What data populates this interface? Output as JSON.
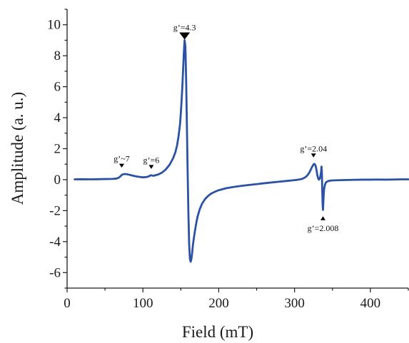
{
  "chart_data": {
    "type": "line",
    "title": "",
    "xlabel": "Field (mT)",
    "ylabel": "Amplitude (a. u.)",
    "xlim": [
      0,
      450
    ],
    "ylim": [
      -7,
      11
    ],
    "x_ticks": [
      0,
      100,
      200,
      300,
      400
    ],
    "y_ticks": [
      -6,
      -4,
      -2,
      0,
      2,
      4,
      6,
      8,
      10
    ],
    "grid": false,
    "line_color": "#2b52a3",
    "series": [
      {
        "x": [
          10,
          20,
          30,
          40,
          50,
          60,
          65,
          68,
          70,
          72,
          74,
          76,
          78,
          80,
          85,
          90,
          95,
          100,
          105,
          108,
          110,
          112,
          114,
          116,
          120,
          125,
          130,
          135,
          140,
          143,
          145,
          147,
          149,
          150,
          151,
          152,
          153,
          154,
          155,
          156,
          157,
          158,
          159,
          160,
          161,
          162,
          163,
          164,
          165,
          166,
          168,
          170,
          172,
          175,
          178,
          182,
          186,
          190,
          195,
          200,
          210,
          220,
          230,
          240,
          250,
          260,
          270,
          280,
          290,
          300,
          305,
          310,
          314,
          317,
          320,
          322,
          324,
          325,
          326,
          327,
          328,
          329,
          330,
          331,
          332,
          333,
          334,
          335,
          335.5,
          336,
          336.5,
          337,
          337.5,
          338,
          338.5,
          339,
          340,
          341,
          342,
          344,
          346,
          350,
          360,
          370,
          380,
          390,
          400,
          410,
          420,
          430,
          440,
          450
        ],
        "y": [
          0.02,
          0.03,
          0.02,
          0.03,
          0.04,
          0.05,
          0.07,
          0.12,
          0.2,
          0.3,
          0.35,
          0.36,
          0.36,
          0.34,
          0.28,
          0.22,
          0.18,
          0.15,
          0.17,
          0.22,
          0.28,
          0.27,
          0.25,
          0.28,
          0.33,
          0.45,
          0.65,
          0.95,
          1.4,
          1.8,
          2.2,
          2.8,
          3.6,
          4.3,
          5.1,
          6.0,
          7.1,
          8.2,
          9.0,
          8.6,
          6.5,
          3.5,
          0.5,
          -2.2,
          -4.2,
          -5.1,
          -5.3,
          -5.1,
          -4.7,
          -4.2,
          -3.5,
          -2.9,
          -2.4,
          -1.9,
          -1.55,
          -1.25,
          -1.05,
          -0.9,
          -0.78,
          -0.68,
          -0.55,
          -0.47,
          -0.4,
          -0.34,
          -0.29,
          -0.23,
          -0.18,
          -0.13,
          -0.08,
          -0.03,
          0.0,
          0.05,
          0.15,
          0.28,
          0.5,
          0.72,
          0.9,
          0.98,
          1.02,
          0.98,
          0.85,
          0.6,
          0.3,
          0.1,
          0.0,
          0.05,
          0.2,
          0.5,
          0.85,
          0.5,
          -0.6,
          -1.6,
          -1.95,
          -1.4,
          -0.9,
          -0.6,
          -0.35,
          -0.22,
          -0.15,
          -0.1,
          -0.07,
          -0.05,
          -0.03,
          -0.02,
          -0.01,
          0.0,
          0.0,
          0.01,
          0.0,
          0.01,
          0.02,
          0.02
        ]
      }
    ],
    "annotations": [
      {
        "text": "g’~7",
        "x": 72,
        "y": 0.36,
        "marker": "down",
        "size": "small"
      },
      {
        "text": "g’=6",
        "x": 111,
        "y": 0.28,
        "marker": "down",
        "size": "small"
      },
      {
        "text": "g’=4.3",
        "x": 155,
        "y": 9.0,
        "marker": "down",
        "size": "large"
      },
      {
        "text": "g’=2.04",
        "x": 325,
        "y": 1.02,
        "marker": "down",
        "size": "small"
      },
      {
        "text": "g’=2.008",
        "x": 337.5,
        "y": -1.95,
        "marker": "up",
        "size": "small"
      }
    ]
  }
}
